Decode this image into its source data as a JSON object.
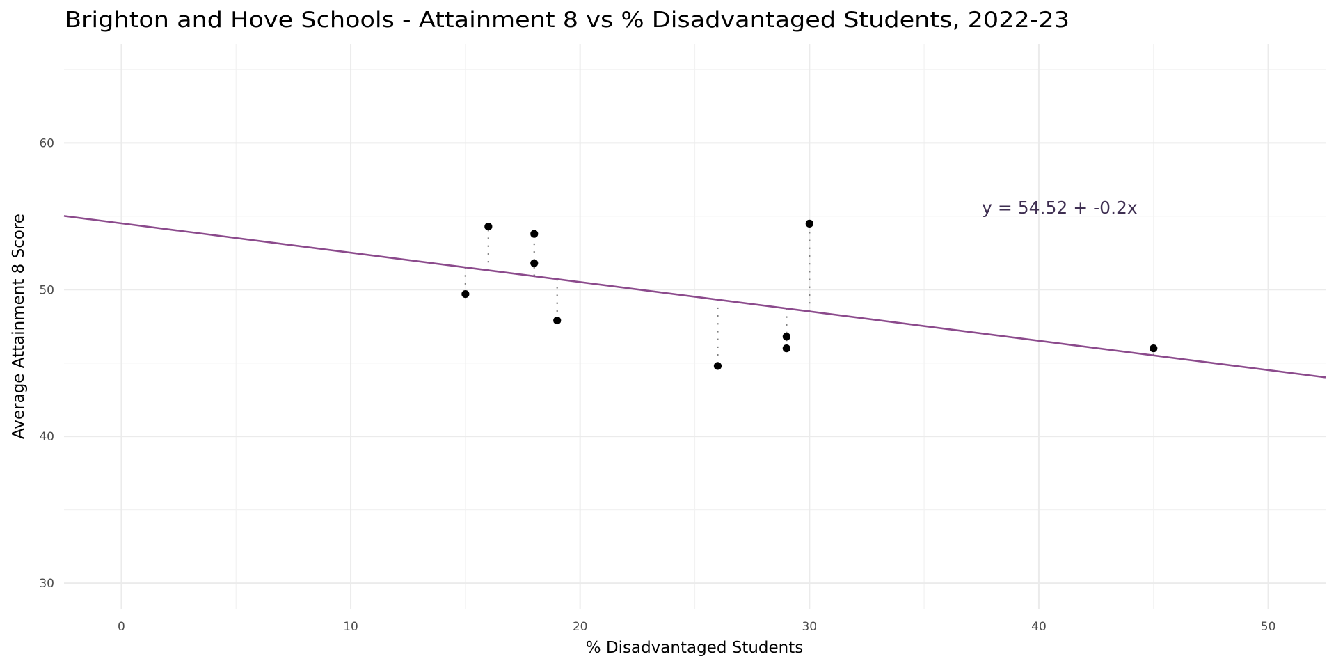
{
  "chart_data": {
    "type": "scatter",
    "title": "Brighton and Hove Schools - Attainment 8 vs % Disadvantaged Students, 2022-23",
    "xlabel": "% Disadvantaged Students",
    "ylabel": "Average Attainment 8 Score",
    "xlim": [
      -2.5,
      52.5
    ],
    "ylim": [
      28.25,
      66.75
    ],
    "x_ticks": [
      0,
      10,
      20,
      30,
      40,
      50
    ],
    "x_tick_labels": [
      "0",
      "10",
      "20",
      "30",
      "40",
      "50"
    ],
    "x_minor_ticks": [
      5,
      15,
      25,
      35,
      45
    ],
    "y_ticks": [
      30,
      40,
      50,
      60
    ],
    "y_tick_labels": [
      "30",
      "40",
      "50",
      "60"
    ],
    "y_minor_ticks": [
      35,
      45,
      55,
      65
    ],
    "grid": true,
    "legend": "none",
    "points": [
      {
        "x": 15,
        "y": 49.7
      },
      {
        "x": 16,
        "y": 54.3
      },
      {
        "x": 18,
        "y": 53.8
      },
      {
        "x": 18,
        "y": 51.8
      },
      {
        "x": 19,
        "y": 47.9
      },
      {
        "x": 26,
        "y": 44.8
      },
      {
        "x": 29,
        "y": 46.8
      },
      {
        "x": 29,
        "y": 46.0
      },
      {
        "x": 30,
        "y": 54.5
      },
      {
        "x": 45,
        "y": 46.0
      }
    ],
    "regression": {
      "intercept": 54.52,
      "slope": -0.2,
      "show_residuals": true
    },
    "annotation": {
      "text": "y = 54.52 + -0.2x",
      "x": 41,
      "y": 55.6
    },
    "colors": {
      "points": "#000000",
      "regression_line": "#8b4a8c",
      "residuals": "#808080",
      "annotation": "#3f2f52",
      "grid": "#ebebeb"
    }
  }
}
